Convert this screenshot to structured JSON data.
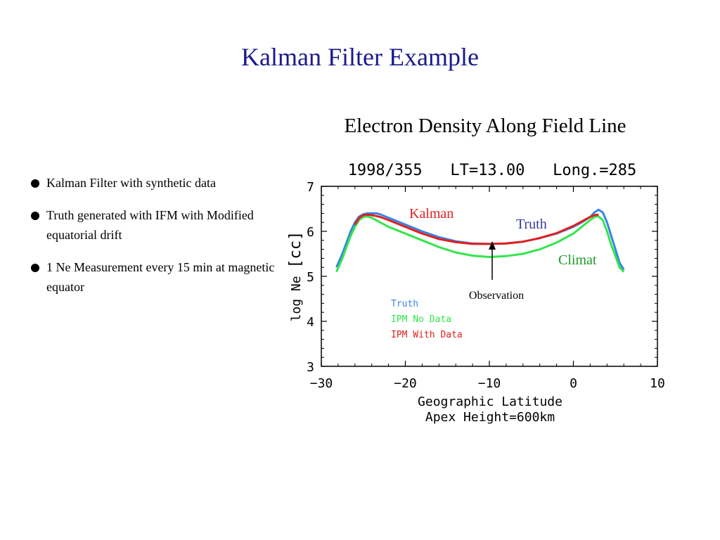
{
  "slide": {
    "title": "Kalman Filter Example",
    "chart_heading": "Electron Density Along Field Line"
  },
  "bullets": [
    {
      "text": "Kalman Filter with synthetic data"
    },
    {
      "text": "Truth generated with IFM with Modified equatorial drift"
    },
    {
      "text": "1 Ne Measurement every 15 min at magnetic equator"
    }
  ],
  "chart_data": {
    "type": "line",
    "title": "1998/355   LT=13.00   Long.=285",
    "xlabel": "Geographic Latitude",
    "xlabel2": "Apex Height=600km",
    "ylabel": "log Ne",
    "ylabel_unit": "[cc]",
    "xlim": [
      -30,
      10
    ],
    "ylim": [
      3,
      7
    ],
    "xticks": [
      -30,
      -20,
      -10,
      0,
      10
    ],
    "yticks": [
      3,
      4,
      5,
      6,
      7
    ],
    "legend": [
      "Truth",
      "IPM No Data",
      "IPM With Data"
    ],
    "legend_colors": [
      "#3a82e6",
      "#33e64d",
      "#e02020"
    ],
    "series": [
      {
        "name": "Truth",
        "color": "#3a82e6",
        "x": [
          -28.2,
          -27.5,
          -27,
          -26.5,
          -26,
          -25.5,
          -25,
          -24.5,
          -24,
          -23.5,
          -23,
          -22,
          -20,
          -18,
          -16,
          -14,
          -12,
          -10,
          -8,
          -6,
          -4,
          -2,
          0,
          1,
          2,
          2.5,
          3,
          3.5,
          4,
          4.5,
          5,
          5.5,
          6
        ],
        "y": [
          5.2,
          5.5,
          5.75,
          6.0,
          6.2,
          6.33,
          6.38,
          6.4,
          6.4,
          6.4,
          6.38,
          6.3,
          6.15,
          6.0,
          5.87,
          5.78,
          5.73,
          5.72,
          5.73,
          5.77,
          5.85,
          5.95,
          6.1,
          6.2,
          6.32,
          6.42,
          6.48,
          6.42,
          6.2,
          5.9,
          5.6,
          5.3,
          5.15
        ]
      },
      {
        "name": "IPM No Data",
        "color": "#33e64d",
        "x": [
          -28.2,
          -27.5,
          -27,
          -26.5,
          -26,
          -25.5,
          -25,
          -24.5,
          -24,
          -23.5,
          -23,
          -22,
          -20,
          -18,
          -16,
          -14,
          -12,
          -10,
          -8,
          -6,
          -4,
          -2,
          0,
          1,
          2,
          2.5,
          3,
          3.5,
          4,
          4.5,
          5,
          5.5,
          6
        ],
        "y": [
          5.1,
          5.4,
          5.65,
          5.9,
          6.1,
          6.25,
          6.32,
          6.33,
          6.3,
          6.25,
          6.2,
          6.1,
          5.95,
          5.8,
          5.65,
          5.53,
          5.46,
          5.43,
          5.45,
          5.5,
          5.6,
          5.75,
          5.95,
          6.1,
          6.25,
          6.32,
          6.33,
          6.25,
          6.0,
          5.7,
          5.45,
          5.2,
          5.1
        ]
      },
      {
        "name": "IPM With Data",
        "color": "#e02020",
        "x": [
          -26,
          -25.5,
          -25,
          -24.5,
          -24,
          -23.5,
          -23,
          -22,
          -20,
          -18,
          -16,
          -14,
          -12,
          -10,
          -8,
          -6,
          -4,
          -2,
          0,
          1,
          2,
          2.5,
          3
        ],
        "y": [
          6.15,
          6.3,
          6.36,
          6.37,
          6.36,
          6.34,
          6.32,
          6.25,
          6.1,
          5.95,
          5.83,
          5.76,
          5.72,
          5.72,
          5.73,
          5.77,
          5.85,
          5.96,
          6.12,
          6.22,
          6.32,
          6.36,
          6.37
        ]
      }
    ],
    "annotations": [
      {
        "text": "Kalman",
        "color": "#e02020"
      },
      {
        "text": "Truth",
        "color": "#3a3aa0"
      },
      {
        "text": "Climat",
        "color": "#1a9a2a"
      },
      {
        "text": "Observation",
        "color": "#000000"
      }
    ]
  }
}
